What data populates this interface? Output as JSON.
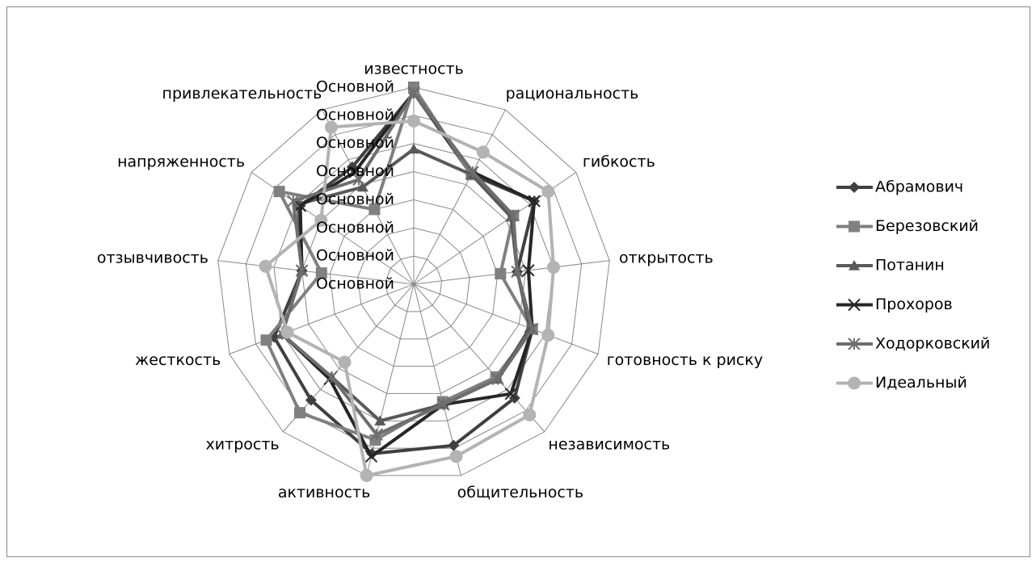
{
  "chart_data": {
    "type": "radar",
    "categories": [
      "известность",
      "рациональность",
      "гибкость",
      "открытость",
      "готовность к риску",
      "независимость",
      "общительность",
      "активность",
      "хитрость",
      "жесткость",
      "отзывчивость",
      "напряженность",
      "привлекательность"
    ],
    "ylim": [
      0,
      7
    ],
    "yticks": [
      {
        "value": 0,
        "label": "Основной"
      },
      {
        "value": 1,
        "label": "Основной"
      },
      {
        "value": 2,
        "label": "Основной"
      },
      {
        "value": 3,
        "label": "Основной"
      },
      {
        "value": 4,
        "label": "Основной"
      },
      {
        "value": 5,
        "label": "Основной"
      },
      {
        "value": 6,
        "label": "Основной"
      },
      {
        "value": 7,
        "label": "Основной"
      }
    ],
    "grid": true,
    "legend": "right",
    "series": [
      {
        "name": "Абрамович",
        "color": "#404040",
        "marker": "diamond",
        "values": [
          6.8,
          4.4,
          5.2,
          3.7,
          4.5,
          5.4,
          5.9,
          6.2,
          5.5,
          5.3,
          4.0,
          4.9,
          4.7
        ]
      },
      {
        "name": "Березовский",
        "color": "#808080",
        "marker": "square",
        "values": [
          7,
          4.4,
          4.3,
          3.1,
          4.5,
          4.4,
          4.3,
          5.7,
          6.1,
          5.6,
          3.3,
          5.8,
          3.0
        ]
      },
      {
        "name": "Потанин",
        "color": "#595959",
        "marker": "triangle",
        "values": [
          4.8,
          4.4,
          4.2,
          3.7,
          4.4,
          4.5,
          4.4,
          5.0,
          4.4,
          5.0,
          4.0,
          5.0,
          3.9
        ]
      },
      {
        "name": "Прохоров",
        "color": "#262626",
        "marker": "x",
        "values": [
          6.8,
          4.5,
          5.2,
          4.1,
          4.5,
          5.2,
          4.4,
          6.3,
          4.5,
          5.0,
          4.0,
          4.9,
          4.5
        ]
      },
      {
        "name": "Ходорковский",
        "color": "#6e6e6e",
        "marker": "star",
        "values": [
          6.8,
          4.5,
          4.3,
          3.7,
          4.5,
          4.5,
          4.4,
          5.5,
          4.4,
          5.0,
          4.0,
          5.2,
          4.2
        ]
      },
      {
        "name": "Идеальный",
        "color": "#b3b3b3",
        "marker": "circle",
        "values": [
          5.8,
          5.3,
          5.8,
          5.0,
          5.1,
          6.2,
          6.3,
          7,
          3.7,
          4.8,
          5.3,
          4.0,
          6.3
        ]
      }
    ]
  }
}
